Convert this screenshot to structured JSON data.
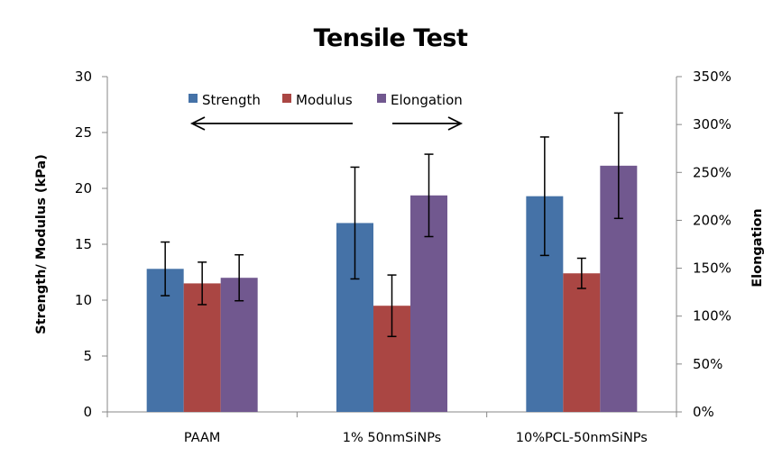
{
  "chart_data": {
    "type": "bar",
    "title": "Tensile Test",
    "categories": [
      "PAAM",
      "1% 50nmSiNPs",
      "10%PCL-50nmSiNPs"
    ],
    "series": [
      {
        "name": "Strength",
        "axis": "left",
        "color": "#4572A7",
        "values": [
          12.8,
          16.9,
          19.3
        ],
        "errors": [
          2.4,
          5.0,
          5.3
        ]
      },
      {
        "name": "Modulus",
        "axis": "left",
        "color": "#AA4643",
        "values": [
          11.5,
          9.5,
          12.4
        ],
        "errors": [
          1.9,
          2.75,
          1.35
        ]
      },
      {
        "name": "Elongation",
        "axis": "right",
        "color": "#71588F",
        "values": [
          140,
          226,
          257
        ],
        "errors": [
          24,
          43,
          55
        ]
      }
    ],
    "left_axis": {
      "label": "Strength/ Modulus (kPa)",
      "ylim": [
        0,
        30
      ],
      "ticks": [
        0,
        5,
        10,
        15,
        20,
        25,
        30
      ],
      "tick_labels": [
        "0",
        "5",
        "10",
        "15",
        "20",
        "25",
        "30"
      ]
    },
    "right_axis": {
      "label": "Elongation",
      "ylim": [
        0,
        350
      ],
      "ticks": [
        0,
        50,
        100,
        150,
        200,
        250,
        300,
        350
      ],
      "tick_labels": [
        "0%",
        "50%",
        "100%",
        "150%",
        "200%",
        "250%",
        "300%",
        "350%"
      ]
    },
    "legend": {
      "position": "top-inside",
      "entries": [
        "Strength",
        "Modulus",
        "Elongation"
      ]
    },
    "annotations": [
      {
        "type": "arrow",
        "direction": "left",
        "description": "arrow pointing left toward Strength/Modulus axis"
      },
      {
        "type": "arrow",
        "direction": "right",
        "description": "arrow pointing right toward Elongation axis"
      }
    ],
    "grid": false
  }
}
